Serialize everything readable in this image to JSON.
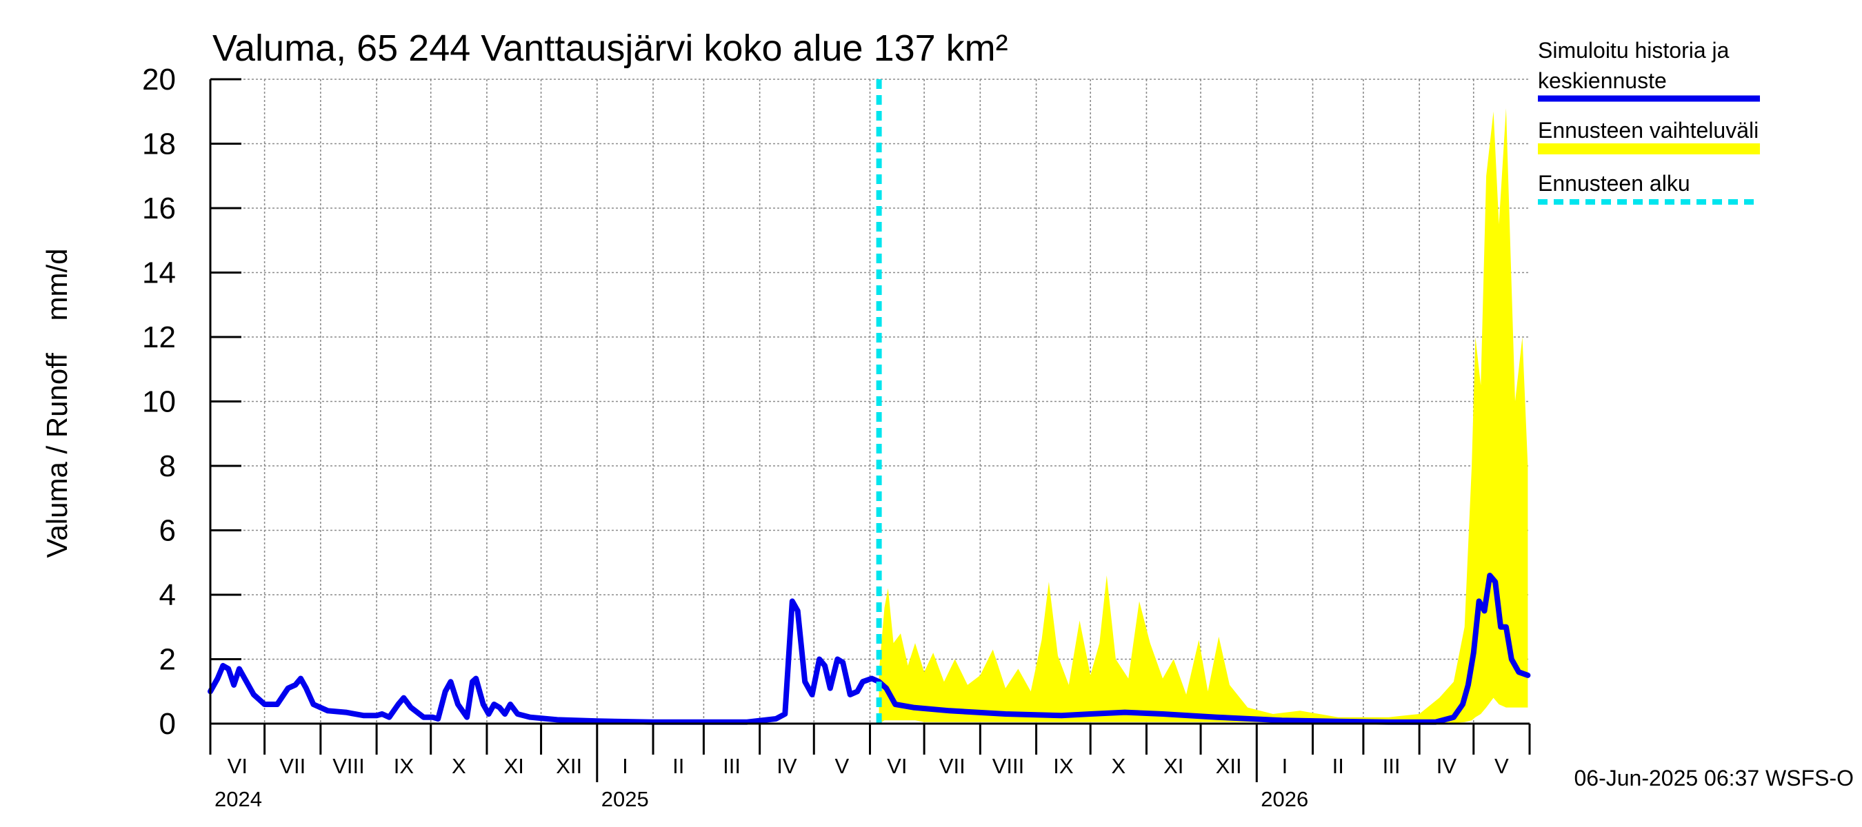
{
  "chart_data": {
    "type": "line",
    "title": "Valuma, 65 244 Vanttausjärvi koko alue 137 km²",
    "ylabel": "Valuma / Runoff    mm/d",
    "ylim": [
      0,
      20
    ],
    "yticks": [
      "0",
      "2",
      "4",
      "6",
      "8",
      "10",
      "12",
      "14",
      "16",
      "18",
      "20"
    ],
    "grid": true,
    "month_labels": [
      "VI",
      "VII",
      "VIII",
      "IX",
      "X",
      "XI",
      "XII",
      "I",
      "II",
      "III",
      "IV",
      "V",
      "VI",
      "VII",
      "VIII",
      "IX",
      "X",
      "XI",
      "XII",
      "I",
      "II",
      "III",
      "IV",
      "V"
    ],
    "year_labels": [
      "2024",
      "2025",
      "2026"
    ],
    "forecast_start": "2025-06-06",
    "legend": {
      "placement": "right",
      "entries": [
        {
          "name": "Simuloitu historia ja keskiennuste",
          "line1": "Simuloitu historia ja",
          "line2": "keskiennuste",
          "color": "#0000ee",
          "style": "solid"
        },
        {
          "name": "Ennusteen vaihteluväli",
          "color": "#ffff00",
          "style": "band"
        },
        {
          "name": "Ennusteen alku",
          "color": "#00e5ee",
          "style": "dashed"
        }
      ]
    },
    "series": [
      {
        "name": "Simuloitu historia ja keskiennuste",
        "color": "#0000ee",
        "points": [
          [
            "2024-06-01",
            1.0
          ],
          [
            "2024-06-05",
            1.4
          ],
          [
            "2024-06-08",
            1.8
          ],
          [
            "2024-06-11",
            1.7
          ],
          [
            "2024-06-14",
            1.2
          ],
          [
            "2024-06-17",
            1.7
          ],
          [
            "2024-06-21",
            1.3
          ],
          [
            "2024-06-25",
            0.9
          ],
          [
            "2024-07-01",
            0.6
          ],
          [
            "2024-07-08",
            0.6
          ],
          [
            "2024-07-14",
            1.1
          ],
          [
            "2024-07-18",
            1.2
          ],
          [
            "2024-07-21",
            1.4
          ],
          [
            "2024-07-24",
            1.1
          ],
          [
            "2024-07-28",
            0.6
          ],
          [
            "2024-08-05",
            0.4
          ],
          [
            "2024-08-15",
            0.35
          ],
          [
            "2024-08-25",
            0.25
          ],
          [
            "2024-09-01",
            0.25
          ],
          [
            "2024-09-04",
            0.3
          ],
          [
            "2024-09-08",
            0.2
          ],
          [
            "2024-09-13",
            0.6
          ],
          [
            "2024-09-16",
            0.8
          ],
          [
            "2024-09-20",
            0.5
          ],
          [
            "2024-09-27",
            0.2
          ],
          [
            "2024-10-02",
            0.2
          ],
          [
            "2024-10-05",
            0.15
          ],
          [
            "2024-10-09",
            1.0
          ],
          [
            "2024-10-12",
            1.3
          ],
          [
            "2024-10-16",
            0.6
          ],
          [
            "2024-10-21",
            0.2
          ],
          [
            "2024-10-24",
            1.3
          ],
          [
            "2024-10-26",
            1.4
          ],
          [
            "2024-10-30",
            0.6
          ],
          [
            "2024-11-02",
            0.3
          ],
          [
            "2024-11-05",
            0.6
          ],
          [
            "2024-11-08",
            0.5
          ],
          [
            "2024-11-11",
            0.3
          ],
          [
            "2024-11-14",
            0.6
          ],
          [
            "2024-11-18",
            0.3
          ],
          [
            "2024-11-25",
            0.2
          ],
          [
            "2024-12-10",
            0.12
          ],
          [
            "2025-01-01",
            0.08
          ],
          [
            "2025-02-01",
            0.05
          ],
          [
            "2025-03-01",
            0.05
          ],
          [
            "2025-03-25",
            0.05
          ],
          [
            "2025-04-10",
            0.15
          ],
          [
            "2025-04-15",
            0.3
          ],
          [
            "2025-04-19",
            3.8
          ],
          [
            "2025-04-22",
            3.5
          ],
          [
            "2025-04-26",
            1.3
          ],
          [
            "2025-04-30",
            0.9
          ],
          [
            "2025-05-04",
            2.0
          ],
          [
            "2025-05-07",
            1.8
          ],
          [
            "2025-05-10",
            1.1
          ],
          [
            "2025-05-14",
            2.0
          ],
          [
            "2025-05-17",
            1.9
          ],
          [
            "2025-05-21",
            0.9
          ],
          [
            "2025-05-25",
            1.0
          ],
          [
            "2025-05-28",
            1.3
          ],
          [
            "2025-06-02",
            1.4
          ],
          [
            "2025-06-06",
            1.3
          ],
          [
            "2025-06-10",
            1.1
          ],
          [
            "2025-06-15",
            0.6
          ],
          [
            "2025-06-25",
            0.5
          ],
          [
            "2025-07-15",
            0.4
          ],
          [
            "2025-08-15",
            0.3
          ],
          [
            "2025-09-15",
            0.25
          ],
          [
            "2025-10-01",
            0.3
          ],
          [
            "2025-10-20",
            0.35
          ],
          [
            "2025-11-10",
            0.3
          ],
          [
            "2025-12-10",
            0.2
          ],
          [
            "2026-01-15",
            0.1
          ],
          [
            "2026-02-15",
            0.07
          ],
          [
            "2026-03-15",
            0.05
          ],
          [
            "2026-04-10",
            0.05
          ],
          [
            "2026-04-20",
            0.2
          ],
          [
            "2026-04-25",
            0.6
          ],
          [
            "2026-04-28",
            1.2
          ],
          [
            "2026-05-01",
            2.2
          ],
          [
            "2026-05-04",
            3.8
          ],
          [
            "2026-05-07",
            3.5
          ],
          [
            "2026-05-10",
            4.6
          ],
          [
            "2026-05-13",
            4.4
          ],
          [
            "2026-05-16",
            3.0
          ],
          [
            "2026-05-19",
            3.0
          ],
          [
            "2026-05-22",
            2.0
          ],
          [
            "2026-05-26",
            1.6
          ],
          [
            "2026-05-31",
            1.5
          ]
        ]
      },
      {
        "name": "Ennusteen vaihteluväli",
        "color": "#ffff00",
        "band": [
          [
            "2025-06-06",
            0.0,
            1.6
          ],
          [
            "2025-06-09",
            0.1,
            3.6
          ],
          [
            "2025-06-11",
            0.1,
            4.2
          ],
          [
            "2025-06-14",
            0.1,
            2.5
          ],
          [
            "2025-06-18",
            0.1,
            2.8
          ],
          [
            "2025-06-22",
            0.1,
            1.8
          ],
          [
            "2025-06-26",
            0.1,
            2.5
          ],
          [
            "2025-07-01",
            0.05,
            1.6
          ],
          [
            "2025-07-06",
            0.05,
            2.2
          ],
          [
            "2025-07-12",
            0.05,
            1.3
          ],
          [
            "2025-07-18",
            0.05,
            2.0
          ],
          [
            "2025-07-25",
            0.05,
            1.2
          ],
          [
            "2025-08-01",
            0.05,
            1.5
          ],
          [
            "2025-08-08",
            0.05,
            2.3
          ],
          [
            "2025-08-15",
            0.05,
            1.1
          ],
          [
            "2025-08-22",
            0.05,
            1.7
          ],
          [
            "2025-08-29",
            0.05,
            1.0
          ],
          [
            "2025-09-04",
            0.05,
            2.6
          ],
          [
            "2025-09-08",
            0.05,
            4.4
          ],
          [
            "2025-09-13",
            0.05,
            2.1
          ],
          [
            "2025-09-19",
            0.05,
            1.2
          ],
          [
            "2025-09-25",
            0.05,
            3.2
          ],
          [
            "2025-10-01",
            0.05,
            1.5
          ],
          [
            "2025-10-06",
            0.05,
            2.5
          ],
          [
            "2025-10-10",
            0.05,
            4.6
          ],
          [
            "2025-10-15",
            0.05,
            2.0
          ],
          [
            "2025-10-22",
            0.05,
            1.4
          ],
          [
            "2025-10-28",
            0.05,
            3.8
          ],
          [
            "2025-11-03",
            0.05,
            2.5
          ],
          [
            "2025-11-10",
            0.05,
            1.4
          ],
          [
            "2025-11-16",
            0.05,
            2.0
          ],
          [
            "2025-11-23",
            0.05,
            0.9
          ],
          [
            "2025-11-30",
            0.05,
            2.6
          ],
          [
            "2025-12-05",
            0.05,
            1.0
          ],
          [
            "2025-12-11",
            0.05,
            2.7
          ],
          [
            "2025-12-17",
            0.05,
            1.2
          ],
          [
            "2025-12-27",
            0.05,
            0.5
          ],
          [
            "2026-01-10",
            0.03,
            0.3
          ],
          [
            "2026-01-25",
            0.03,
            0.4
          ],
          [
            "2026-02-15",
            0.03,
            0.2
          ],
          [
            "2026-03-15",
            0.02,
            0.2
          ],
          [
            "2026-04-01",
            0.02,
            0.3
          ],
          [
            "2026-04-12",
            0.02,
            0.8
          ],
          [
            "2026-04-20",
            0.02,
            1.3
          ],
          [
            "2026-04-26",
            0.05,
            3.0
          ],
          [
            "2026-04-30",
            0.1,
            8.0
          ],
          [
            "2026-05-02",
            0.2,
            12.0
          ],
          [
            "2026-05-05",
            0.3,
            10.5
          ],
          [
            "2026-05-08",
            0.5,
            17.0
          ],
          [
            "2026-05-12",
            0.8,
            19.0
          ],
          [
            "2026-05-15",
            0.6,
            15.5
          ],
          [
            "2026-05-19",
            0.5,
            19.1
          ],
          [
            "2026-05-24",
            0.5,
            10.0
          ],
          [
            "2026-05-28",
            0.5,
            12.0
          ],
          [
            "2026-05-31",
            0.5,
            8.0
          ]
        ]
      }
    ]
  },
  "footer": {
    "timestamp": "06-Jun-2025 06:37 WSFS-O"
  }
}
